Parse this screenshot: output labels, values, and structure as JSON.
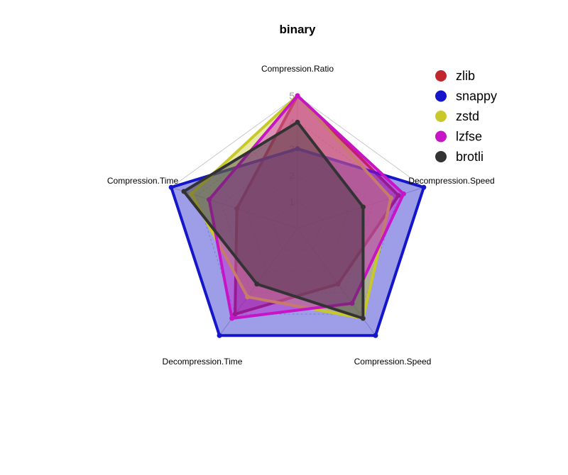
{
  "chart_data": {
    "type": "radar",
    "title": "binary",
    "axes": [
      "Compression.Ratio",
      "Decompression.Speed",
      "Compression.Speed",
      "Decompression.Time",
      "Compression.Time"
    ],
    "rlim": [
      0,
      5
    ],
    "ticks": [
      "1",
      "2",
      "3",
      "4",
      "5"
    ],
    "grid": true,
    "legend_position": "top-right",
    "series": [
      {
        "name": "zlib",
        "color": "#c0272d",
        "values": [
          5,
          4.0,
          2.6,
          4.0,
          2.4
        ]
      },
      {
        "name": "snappy",
        "color": "#1515c9",
        "values": [
          3.0,
          5,
          5,
          5,
          5
        ]
      },
      {
        "name": "zstd",
        "color": "#c8c828",
        "values": [
          5,
          3.7,
          4.2,
          3.2,
          4.2
        ]
      },
      {
        "name": "lzfse",
        "color": "#c614c6",
        "values": [
          5,
          4.2,
          3.5,
          4.2,
          3.5
        ]
      },
      {
        "name": "brotli",
        "color": "#333333",
        "values": [
          4.0,
          2.6,
          4.2,
          2.6,
          4.5
        ]
      }
    ]
  }
}
